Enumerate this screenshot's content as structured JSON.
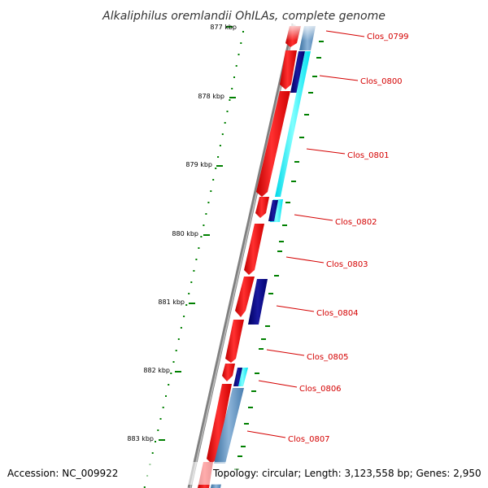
{
  "title": "Alkaliphilus oremlandii OhILAs, complete genome",
  "footer": {
    "accession": "Accession: NC_009922",
    "summary": "Topology: circular; Length: 3,123,558 bp; Genes: 2,950"
  },
  "ticks": [
    "877 kbp",
    "878 kbp",
    "879 kbp",
    "880 kbp",
    "881 kbp",
    "882 kbp",
    "883 kbp"
  ],
  "genes": [
    "Clos_0799",
    "Clos_0800",
    "Clos_0801",
    "Clos_0802",
    "Clos_0803",
    "Clos_0804",
    "Clos_0805",
    "Clos_0806",
    "Clos_0807"
  ],
  "colors": {
    "cds_forward": "#ff0000",
    "label_red": "#d40000",
    "backbone": "#808080",
    "tick_green": "#008000",
    "cyan": "#00ffff",
    "navy": "#000080",
    "steelblue": "#4682b4"
  }
}
